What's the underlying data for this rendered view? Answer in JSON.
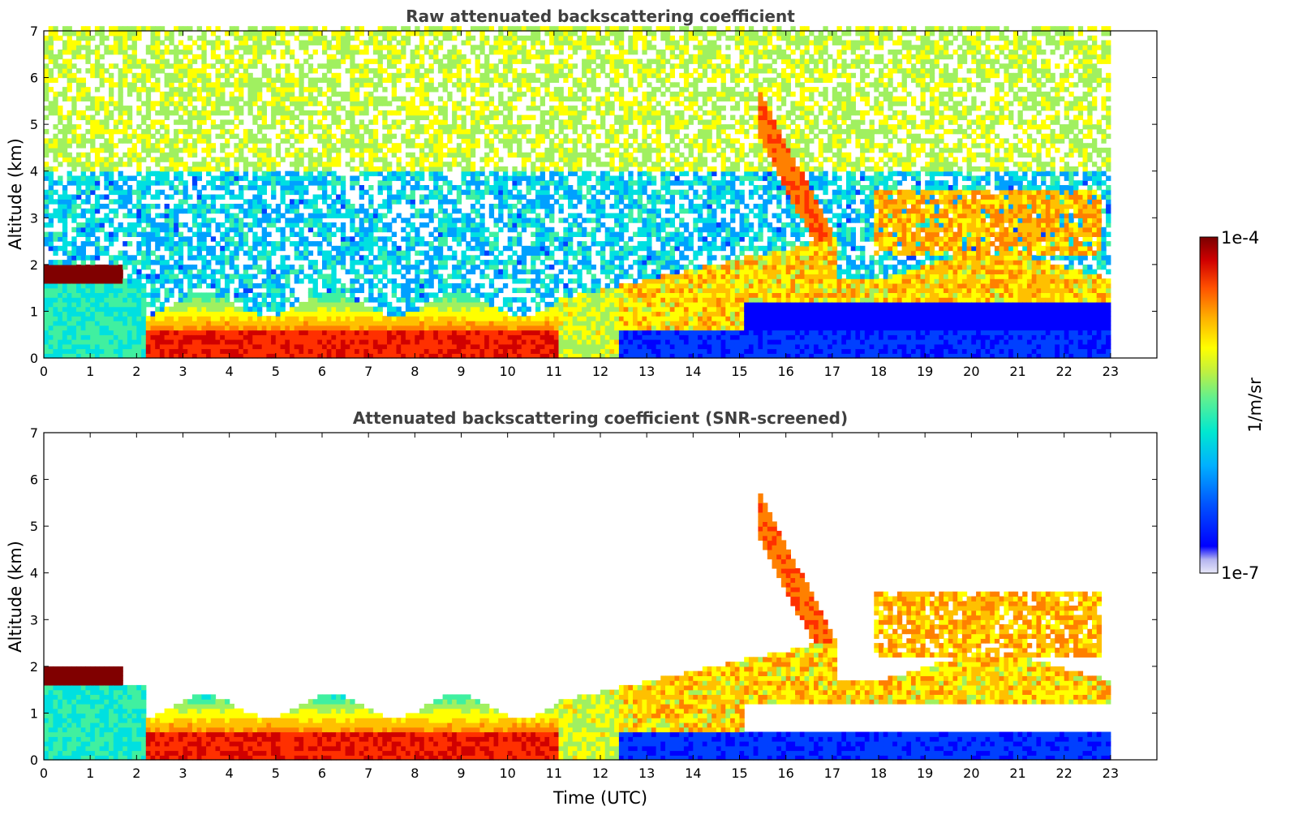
{
  "chart_data": [
    {
      "type": "heatmap",
      "title": "Raw attenuated backscattering coefficient",
      "xlabel": "",
      "ylabel": "Altitude (km)",
      "xlim": [
        0,
        24
      ],
      "ylim": [
        0,
        7
      ],
      "x_ticks": [
        0,
        1,
        2,
        3,
        4,
        5,
        6,
        7,
        8,
        9,
        10,
        11,
        12,
        13,
        14,
        15,
        16,
        17,
        18,
        19,
        20,
        21,
        22,
        23
      ],
      "y_ticks": [
        0,
        1,
        2,
        3,
        4,
        5,
        6,
        7
      ],
      "data_end_time": 23,
      "grid": false,
      "features": {
        "nocturnal_boundary_layer": {
          "time_start": 2.2,
          "time_end": 11,
          "top_km": 1.2
        },
        "low_cloud": {
          "time_start": 0,
          "time_end": 1.7,
          "altitude_km": [
            1.5,
            2.0
          ]
        },
        "daytime_boundary_layer": {
          "time_start": 11,
          "time_end": 23,
          "top_km": [
            1.5,
            2.5
          ]
        },
        "elevated_aerosol_layers": [
          {
            "time": 16.5,
            "altitude_km": [
              2,
              5.5
            ]
          },
          {
            "time": 20,
            "altitude_km": [
              2.2,
              3.5
            ]
          }
        ]
      }
    },
    {
      "type": "heatmap",
      "title": "Attenuated backscattering coefficient (SNR-screened)",
      "xlabel": "Time (UTC)",
      "ylabel": "Altitude (km)",
      "xlim": [
        0,
        24
      ],
      "ylim": [
        0,
        7
      ],
      "x_ticks": [
        0,
        1,
        2,
        3,
        4,
        5,
        6,
        7,
        8,
        9,
        10,
        11,
        12,
        13,
        14,
        15,
        16,
        17,
        18,
        19,
        20,
        21,
        22,
        23
      ],
      "y_ticks": [
        0,
        1,
        2,
        3,
        4,
        5,
        6,
        7
      ],
      "data_end_time": 23,
      "grid": false
    }
  ],
  "colorbar": {
    "label": "1/m/sr",
    "max_label": "1e-4",
    "min_label": "1e-7",
    "scale": "log",
    "range": [
      1e-07,
      0.0001
    ],
    "colormap": [
      "#e8e8f8",
      "#b4b4f0",
      "#0000ff",
      "#0040ff",
      "#00a0ff",
      "#00e0e0",
      "#40f0a0",
      "#a0f060",
      "#ffff00",
      "#ffc000",
      "#ff8000",
      "#ff3000",
      "#d00000",
      "#800000"
    ]
  }
}
